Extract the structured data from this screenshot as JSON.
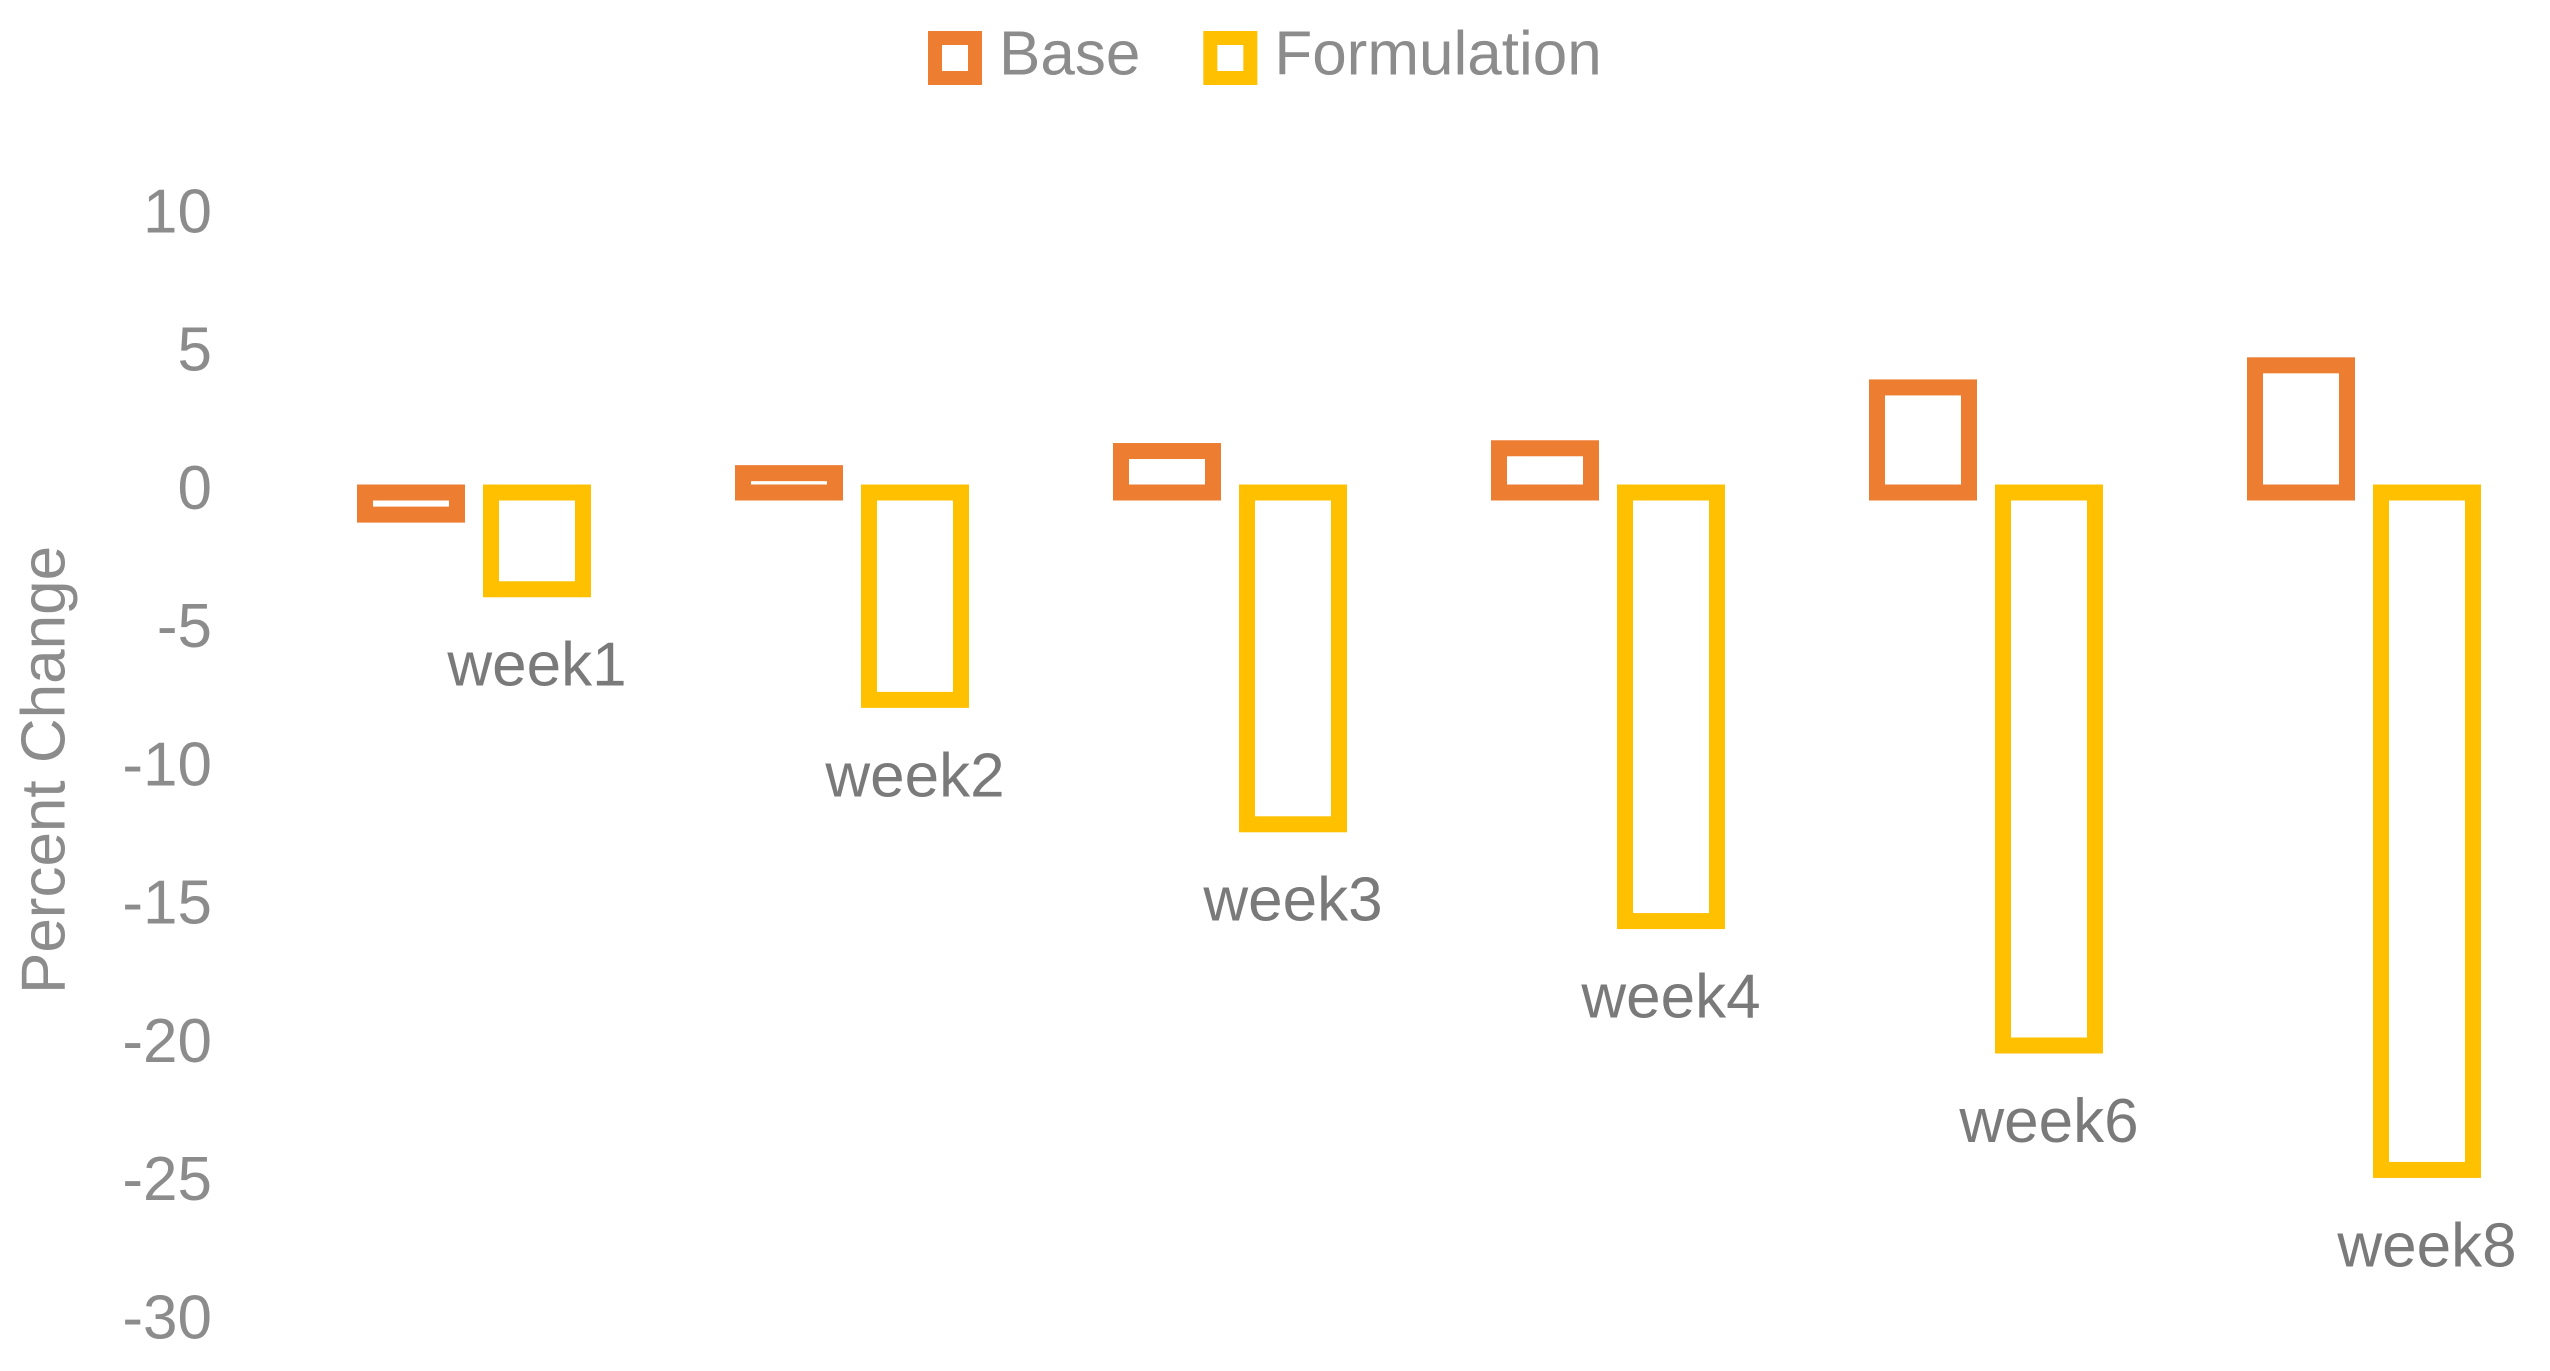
{
  "chart_data": {
    "type": "bar",
    "y_label": "Percent Change",
    "categories": [
      "week1",
      "week2",
      "week3",
      "week4",
      "week6",
      "week8"
    ],
    "series": [
      {
        "name": "Base",
        "color": "#ED7D31",
        "values": [
          -0.8,
          0.7,
          1.5,
          1.6,
          3.8,
          4.6
        ]
      },
      {
        "name": "Formulation",
        "color": "#FFC000",
        "values": [
          -3.5,
          -7.5,
          -12,
          -15.5,
          -20,
          -24.5
        ]
      }
    ],
    "ylim": [
      -30,
      10
    ],
    "yticks": [
      -30,
      -25,
      -20,
      -15,
      -10,
      -5,
      0,
      5,
      10
    ],
    "grid": false,
    "legend": "top"
  }
}
